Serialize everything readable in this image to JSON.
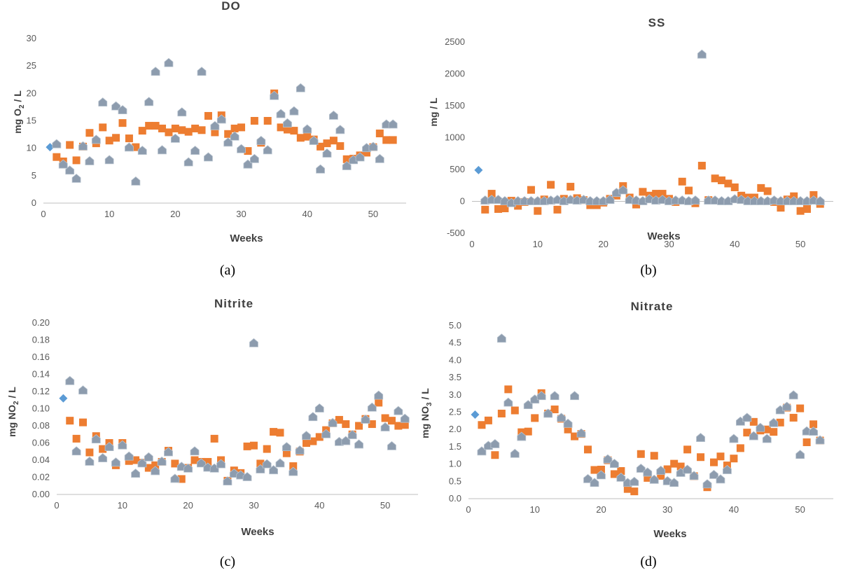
{
  "colors": {
    "series_1": "#5b9bd5",
    "series_2": "#ed7d31",
    "series_3": "#8d9cae",
    "axis": "#bfbfbf",
    "text": "#404040"
  },
  "chart_data": [
    {
      "type": "scatter",
      "title": "DO",
      "xlabel": "Weeks",
      "ylabel": "mg O2 / L",
      "ylabel_parts": {
        "pre": "mg O",
        "sub": "2",
        "post": " / L"
      },
      "caption": "(a)",
      "xlim": [
        0,
        55
      ],
      "ylim": [
        0,
        30
      ],
      "xticks": [
        0,
        10,
        20,
        30,
        40,
        50
      ],
      "yticks": [
        0,
        5,
        10,
        15,
        20,
        25,
        30
      ],
      "ytick_labels": [
        "0",
        "5",
        "10",
        "15",
        "20",
        "25",
        "30"
      ],
      "grid": false,
      "legend": "none",
      "series": [
        {
          "marker": "diamond",
          "x": [
            1
          ],
          "y": [
            10.2
          ]
        },
        {
          "marker": "square",
          "x": [
            2,
            3,
            4,
            5,
            6,
            7,
            8,
            9,
            10,
            11,
            12,
            13,
            14,
            15,
            16,
            17,
            18,
            19,
            20,
            21,
            22,
            23,
            24,
            25,
            26,
            27,
            28,
            29,
            30,
            31,
            32,
            33,
            34,
            35,
            36,
            37,
            38,
            39,
            40,
            41,
            42,
            43,
            44,
            45,
            46,
            47,
            48,
            49,
            50,
            51,
            52,
            53
          ],
          "y": [
            8.4,
            7.6,
            10.6,
            7.8,
            10.3,
            12.8,
            10.9,
            13.8,
            11.4,
            11.9,
            14.6,
            11.8,
            10.2,
            13.2,
            14.1,
            14.1,
            13.6,
            12.9,
            13.6,
            13.3,
            13.0,
            13.6,
            13.3,
            15.9,
            12.9,
            16.0,
            12.6,
            13.6,
            13.8,
            9.5,
            15.0,
            11.0,
            15.0,
            20.0,
            13.8,
            13.4,
            13.2,
            11.9,
            12.1,
            11.6,
            10.3,
            10.9,
            11.4,
            10.4,
            8.0,
            8.1,
            8.7,
            9.2,
            10.2,
            12.7,
            11.5,
            11.5
          ]
        },
        {
          "marker": "pentagon",
          "x": [
            2,
            3,
            4,
            5,
            6,
            7,
            8,
            9,
            10,
            11,
            12,
            13,
            14,
            15,
            16,
            17,
            18,
            19,
            20,
            21,
            22,
            23,
            24,
            25,
            26,
            27,
            28,
            29,
            30,
            31,
            32,
            33,
            34,
            35,
            36,
            37,
            38,
            39,
            40,
            41,
            42,
            43,
            44,
            45,
            46,
            47,
            48,
            49,
            50,
            51,
            52,
            53
          ],
          "y": [
            10.7,
            7.0,
            5.9,
            4.4,
            10.3,
            7.6,
            11.5,
            18.3,
            7.8,
            17.6,
            16.9,
            10.1,
            3.9,
            9.5,
            18.4,
            23.9,
            9.6,
            25.5,
            11.7,
            16.5,
            7.4,
            9.5,
            23.9,
            8.3,
            14.0,
            15.2,
            11.0,
            12.1,
            9.8,
            7.0,
            8.0,
            11.3,
            9.6,
            19.5,
            16.2,
            14.5,
            16.7,
            20.9,
            13.4,
            11.3,
            6.1,
            9.0,
            15.9,
            13.3,
            6.7,
            7.8,
            8.3,
            10.0,
            10.2,
            8.0,
            14.3,
            14.3
          ]
        }
      ]
    },
    {
      "type": "scatter",
      "title": "SS",
      "xlabel": "Weeks",
      "ylabel": "mg / L",
      "ylabel_parts": {
        "pre": "mg / L",
        "sub": "",
        "post": ""
      },
      "caption": "(b)",
      "xlim": [
        0,
        55
      ],
      "ylim": [
        -500,
        2500
      ],
      "xticks": [
        0,
        10,
        20,
        30,
        40,
        50
      ],
      "yticks": [
        -500,
        0,
        500,
        1000,
        1500,
        2000,
        2500
      ],
      "ytick_labels": [
        "-500",
        "0",
        "500",
        "1000",
        "1500",
        "2000",
        "2500"
      ],
      "grid": false,
      "legend": "none",
      "series": [
        {
          "marker": "diamond",
          "x": [
            1
          ],
          "y": [
            490
          ]
        },
        {
          "marker": "square",
          "x": [
            2,
            3,
            4,
            5,
            6,
            7,
            8,
            9,
            10,
            11,
            12,
            13,
            14,
            15,
            16,
            17,
            18,
            19,
            20,
            21,
            22,
            23,
            24,
            25,
            26,
            27,
            28,
            29,
            30,
            31,
            32,
            33,
            34,
            35,
            36,
            37,
            38,
            39,
            40,
            41,
            42,
            43,
            44,
            45,
            46,
            47,
            48,
            49,
            50,
            51,
            52,
            53
          ],
          "y": [
            -130,
            120,
            -120,
            -110,
            10,
            -70,
            -10,
            180,
            -150,
            30,
            260,
            -130,
            40,
            230,
            50,
            20,
            -60,
            -60,
            -20,
            40,
            90,
            240,
            60,
            -50,
            150,
            90,
            120,
            120,
            40,
            -10,
            310,
            170,
            -30,
            560,
            20,
            360,
            330,
            280,
            220,
            90,
            60,
            60,
            210,
            160,
            -10,
            -100,
            30,
            80,
            -150,
            -120,
            100,
            -40
          ]
        },
        {
          "marker": "pentagon",
          "x": [
            2,
            3,
            4,
            5,
            6,
            7,
            8,
            9,
            10,
            11,
            12,
            13,
            14,
            15,
            16,
            17,
            18,
            19,
            20,
            21,
            22,
            23,
            24,
            25,
            26,
            27,
            28,
            29,
            30,
            31,
            32,
            33,
            34,
            35,
            36,
            37,
            38,
            39,
            40,
            41,
            42,
            43,
            44,
            45,
            46,
            47,
            48,
            49,
            50,
            51,
            52,
            53
          ],
          "y": [
            10,
            20,
            20,
            0,
            -30,
            0,
            0,
            0,
            0,
            0,
            10,
            20,
            0,
            20,
            10,
            20,
            0,
            0,
            0,
            20,
            130,
            170,
            20,
            10,
            0,
            30,
            10,
            20,
            0,
            10,
            10,
            0,
            10,
            2300,
            10,
            10,
            0,
            0,
            30,
            20,
            0,
            0,
            0,
            0,
            10,
            0,
            0,
            0,
            0,
            0,
            10,
            0
          ]
        }
      ]
    },
    {
      "type": "scatter",
      "title": "Nitrite",
      "xlabel": "Weeks",
      "ylabel": "mg NO2 / L",
      "ylabel_parts": {
        "pre": "mg NO",
        "sub": "2",
        "post": " / L"
      },
      "caption": "(c)",
      "xlim": [
        0,
        55
      ],
      "ylim": [
        0,
        0.2
      ],
      "xticks": [
        0,
        10,
        20,
        30,
        40,
        50
      ],
      "yticks": [
        0,
        0.02,
        0.04,
        0.06,
        0.08,
        0.1,
        0.12,
        0.14,
        0.16,
        0.18,
        0.2
      ],
      "ytick_labels": [
        "0.00",
        "0.02",
        "0.04",
        "0.06",
        "0.08",
        "0.10",
        "0.12",
        "0.14",
        "0.16",
        "0.18",
        "0.20"
      ],
      "grid": false,
      "legend": "none",
      "series": [
        {
          "marker": "diamond",
          "x": [
            1
          ],
          "y": [
            0.112
          ]
        },
        {
          "marker": "square",
          "x": [
            2,
            3,
            4,
            5,
            6,
            7,
            8,
            9,
            10,
            11,
            12,
            13,
            14,
            15,
            16,
            17,
            18,
            19,
            20,
            21,
            22,
            23,
            24,
            25,
            26,
            27,
            28,
            29,
            30,
            31,
            32,
            33,
            34,
            35,
            36,
            37,
            38,
            39,
            40,
            41,
            42,
            43,
            44,
            45,
            46,
            47,
            48,
            49,
            50,
            51,
            52,
            53
          ],
          "y": [
            0.086,
            0.065,
            0.084,
            0.049,
            0.068,
            0.053,
            0.06,
            0.034,
            0.06,
            0.039,
            0.04,
            0.037,
            0.031,
            0.034,
            0.038,
            0.051,
            0.036,
            0.018,
            0.031,
            0.04,
            0.038,
            0.038,
            0.065,
            0.04,
            0.016,
            0.028,
            0.025,
            0.056,
            0.057,
            0.036,
            0.053,
            0.073,
            0.072,
            0.048,
            0.033,
            0.05,
            0.06,
            0.062,
            0.067,
            0.075,
            0.083,
            0.087,
            0.082,
            0.07,
            0.08,
            0.088,
            0.082,
            0.107,
            0.089,
            0.086,
            0.08,
            0.081
          ]
        },
        {
          "marker": "pentagon",
          "x": [
            2,
            3,
            4,
            5,
            6,
            7,
            8,
            9,
            10,
            11,
            12,
            13,
            14,
            15,
            16,
            17,
            18,
            19,
            20,
            21,
            22,
            23,
            24,
            25,
            26,
            27,
            28,
            29,
            30,
            31,
            32,
            33,
            34,
            35,
            36,
            37,
            38,
            39,
            40,
            41,
            42,
            43,
            44,
            45,
            46,
            47,
            48,
            49,
            50,
            51,
            52,
            53
          ],
          "y": [
            0.132,
            0.05,
            0.121,
            0.038,
            0.064,
            0.042,
            0.055,
            0.037,
            0.057,
            0.044,
            0.024,
            0.036,
            0.043,
            0.027,
            0.038,
            0.049,
            0.018,
            0.032,
            0.03,
            0.05,
            0.036,
            0.031,
            0.03,
            0.035,
            0.015,
            0.024,
            0.022,
            0.02,
            0.176,
            0.029,
            0.035,
            0.028,
            0.036,
            0.055,
            0.026,
            0.051,
            0.068,
            0.09,
            0.1,
            0.07,
            0.083,
            0.061,
            0.062,
            0.069,
            0.058,
            0.087,
            0.101,
            0.115,
            0.078,
            0.056,
            0.097,
            0.088
          ]
        }
      ]
    },
    {
      "type": "scatter",
      "title": "Nitrate",
      "xlabel": "Weeks",
      "ylabel": "mg NO3 / L",
      "ylabel_parts": {
        "pre": "mg NO",
        "sub": "3",
        "post": " / L"
      },
      "caption": "(d)",
      "xlim": [
        0,
        55
      ],
      "ylim": [
        0,
        5
      ],
      "xticks": [
        0,
        10,
        20,
        30,
        40,
        50
      ],
      "yticks": [
        0,
        0.5,
        1,
        1.5,
        2,
        2.5,
        3,
        3.5,
        4,
        4.5,
        5
      ],
      "ytick_labels": [
        "0.0",
        "0.5",
        "1.0",
        "1.5",
        "2.0",
        "2.5",
        "3.0",
        "3.5",
        "4.0",
        "4.5",
        "5.0"
      ],
      "grid": false,
      "legend": "none",
      "series": [
        {
          "marker": "diamond",
          "x": [
            1
          ],
          "y": [
            2.43
          ]
        },
        {
          "marker": "square",
          "x": [
            2,
            3,
            4,
            5,
            6,
            7,
            8,
            9,
            10,
            11,
            12,
            13,
            14,
            15,
            16,
            17,
            18,
            19,
            20,
            21,
            22,
            23,
            24,
            25,
            26,
            27,
            28,
            29,
            30,
            31,
            32,
            33,
            34,
            35,
            36,
            37,
            38,
            39,
            40,
            41,
            42,
            43,
            44,
            45,
            46,
            47,
            48,
            49,
            50,
            51,
            52,
            53
          ],
          "y": [
            2.13,
            2.26,
            1.26,
            2.46,
            3.16,
            2.55,
            1.92,
            1.94,
            2.33,
            3.05,
            2.46,
            2.58,
            2.31,
            2.0,
            1.8,
            1.87,
            1.42,
            0.83,
            0.84,
            1.11,
            0.71,
            0.8,
            0.28,
            0.21,
            1.29,
            0.6,
            1.24,
            0.66,
            0.85,
            1.01,
            0.93,
            1.42,
            0.65,
            1.2,
            0.33,
            1.05,
            1.22,
            0.96,
            1.16,
            1.46,
            1.91,
            2.22,
            1.97,
            2.0,
            1.93,
            2.2,
            2.63,
            2.34,
            2.61,
            1.63,
            2.15,
            1.68
          ]
        },
        {
          "marker": "pentagon",
          "x": [
            2,
            3,
            4,
            5,
            6,
            7,
            8,
            9,
            10,
            11,
            12,
            13,
            14,
            15,
            16,
            17,
            18,
            19,
            20,
            21,
            22,
            23,
            24,
            25,
            26,
            27,
            28,
            29,
            30,
            31,
            32,
            33,
            34,
            35,
            36,
            37,
            38,
            39,
            40,
            41,
            42,
            43,
            44,
            45,
            46,
            47,
            48,
            49,
            50,
            51,
            52,
            53
          ],
          "y": [
            1.36,
            1.52,
            1.57,
            4.62,
            2.77,
            1.29,
            1.78,
            2.7,
            2.86,
            2.96,
            2.45,
            2.96,
            2.33,
            2.16,
            2.96,
            1.88,
            0.56,
            0.45,
            0.67,
            1.13,
            1.0,
            0.6,
            0.45,
            0.48,
            0.86,
            0.75,
            0.54,
            0.8,
            0.5,
            0.45,
            0.74,
            0.83,
            0.65,
            1.75,
            0.41,
            0.68,
            0.55,
            0.82,
            1.72,
            2.22,
            2.33,
            1.8,
            2.04,
            1.72,
            2.18,
            2.55,
            2.65,
            2.98,
            1.26,
            1.94,
            1.93,
            1.68
          ]
        }
      ]
    }
  ]
}
